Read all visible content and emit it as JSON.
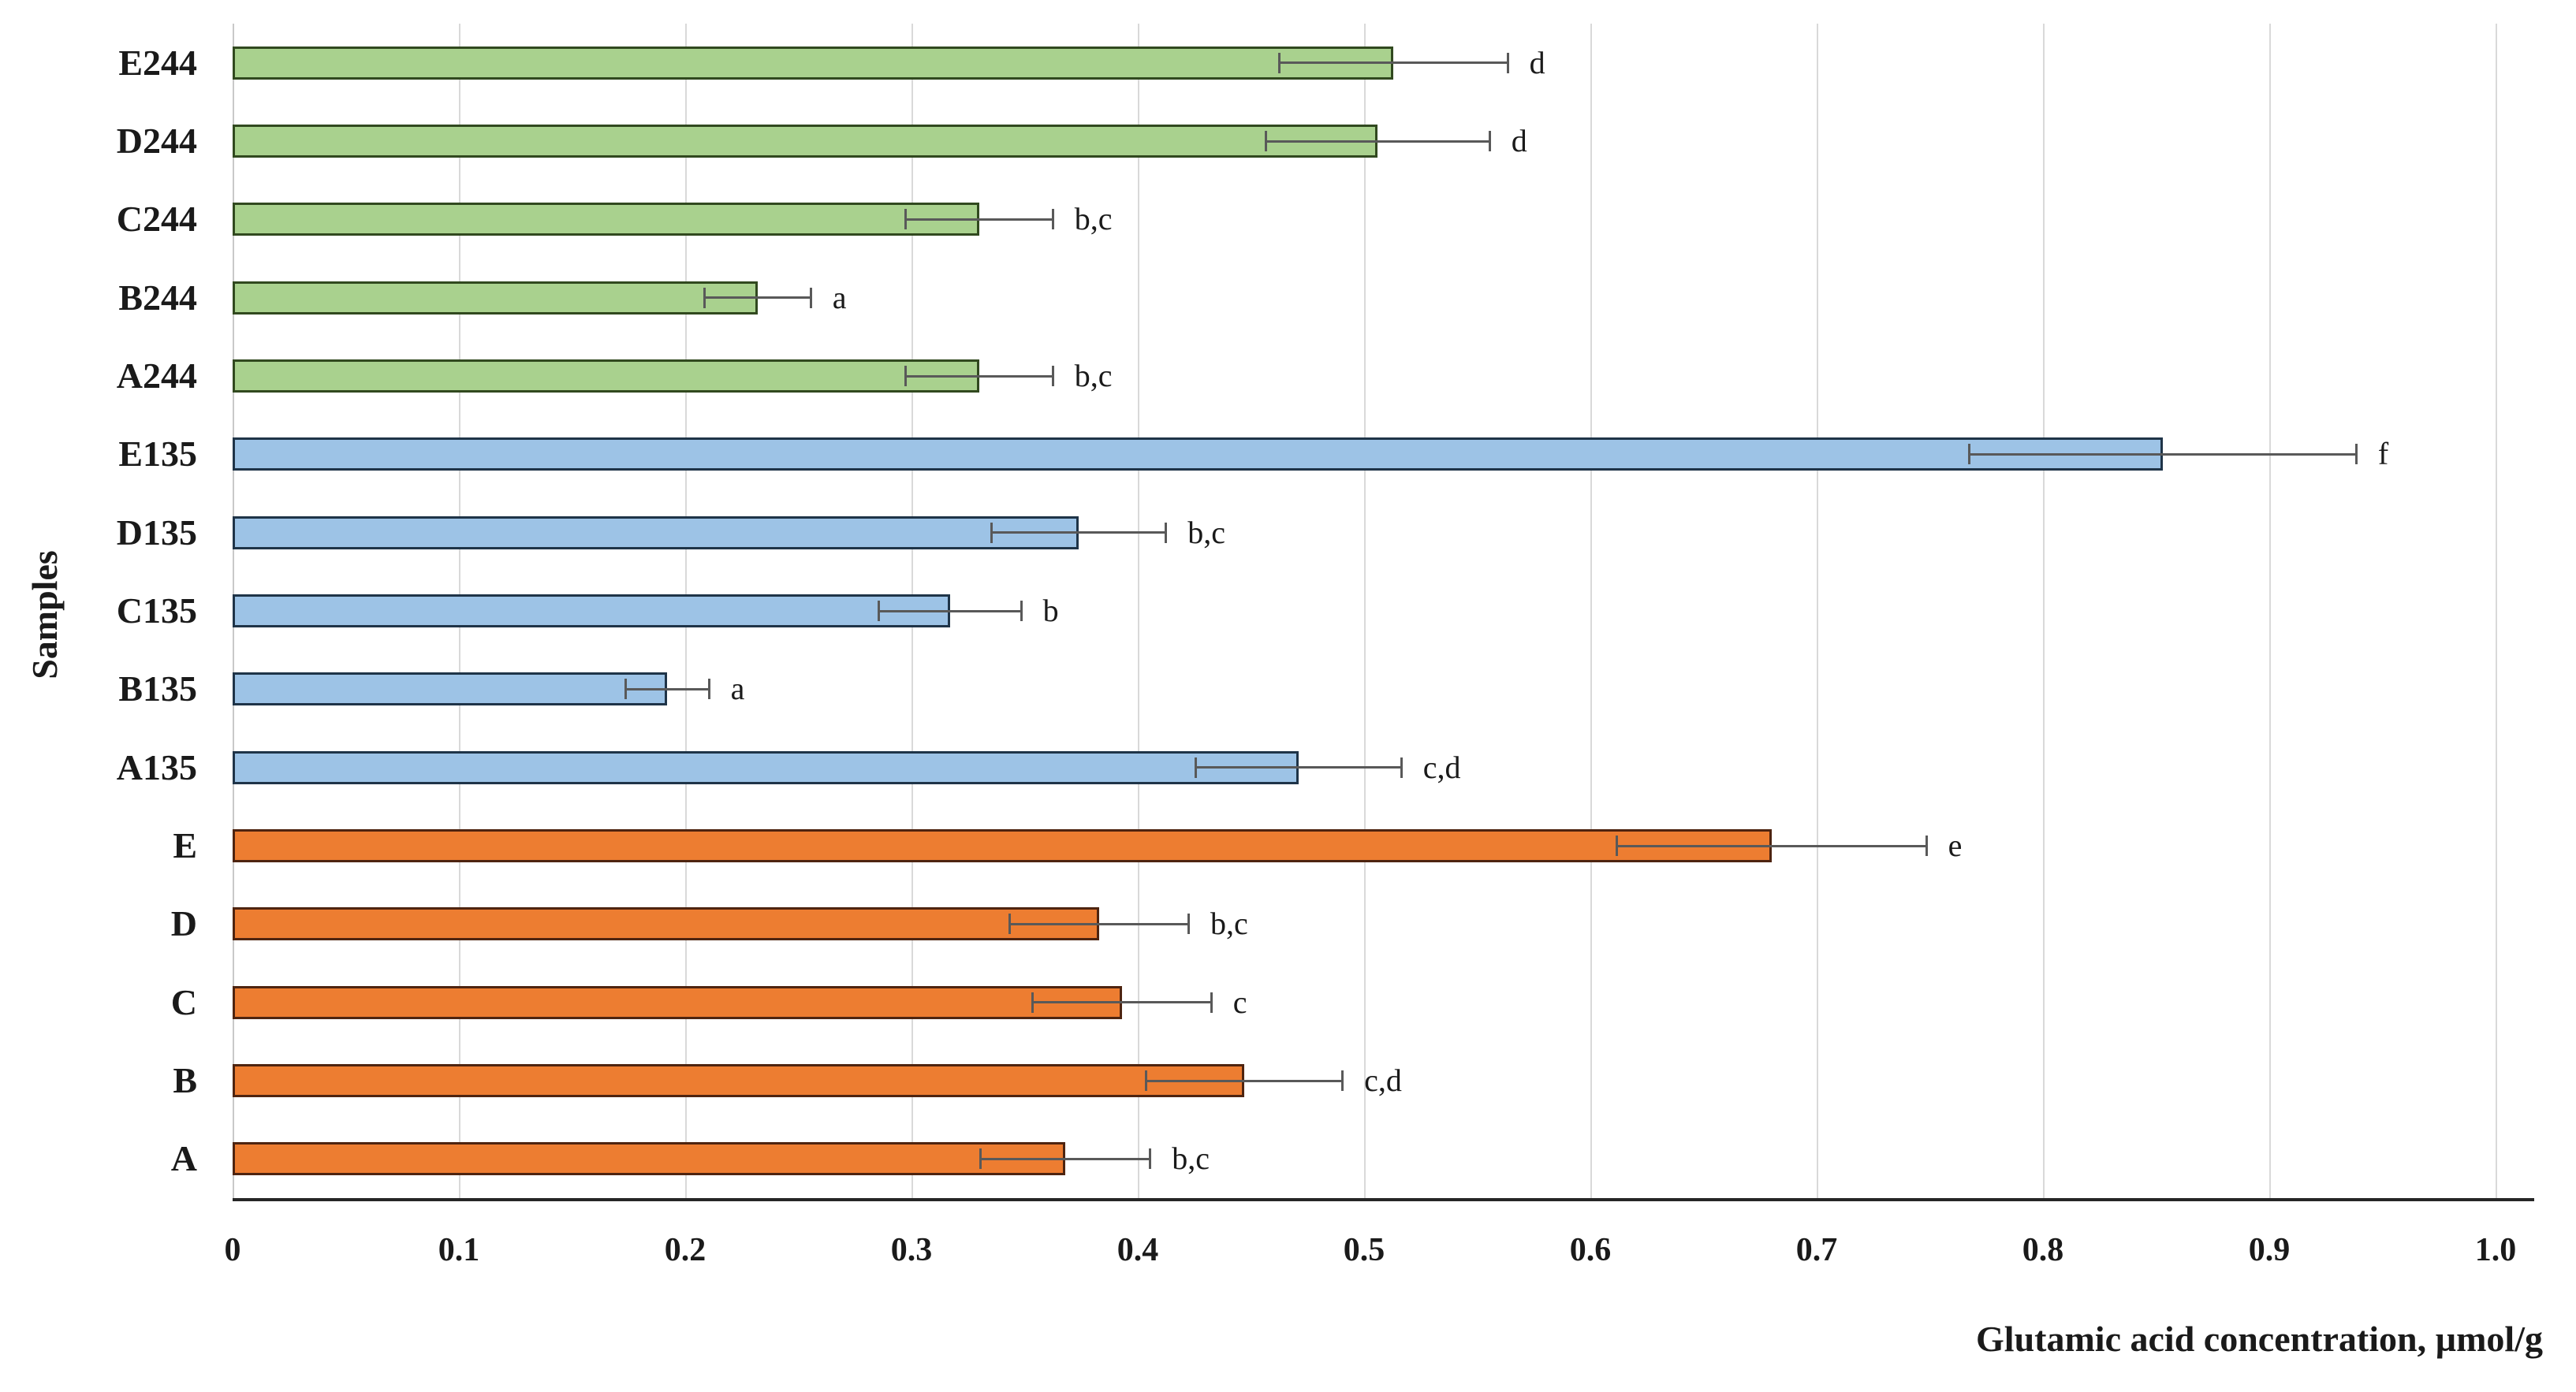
{
  "chart_data": {
    "type": "bar",
    "orientation": "horizontal",
    "title": "",
    "xlabel": "Glutamic acid concentration, µmol/g",
    "ylabel": "Samples",
    "xlim": [
      0,
      1.0
    ],
    "grid": true,
    "legend": "none",
    "xtick_values": [
      0,
      0.1,
      0.2,
      0.3,
      0.4,
      0.5,
      0.6,
      0.7,
      0.8,
      0.9,
      1.0
    ],
    "xtick_labels": [
      "0",
      "0.1",
      "0.2",
      "0.3",
      "0.4",
      "0.5",
      "0.6",
      "0.7",
      "0.8",
      "0.9",
      "1.0"
    ],
    "bars": [
      {
        "label": "E244",
        "value": 0.513,
        "error": 0.051,
        "letter": "d",
        "color": "green"
      },
      {
        "label": "D244",
        "value": 0.506,
        "error": 0.05,
        "letter": "d",
        "color": "green"
      },
      {
        "label": "C244",
        "value": 0.33,
        "error": 0.033,
        "letter": "b,c",
        "color": "green"
      },
      {
        "label": "B244",
        "value": 0.232,
        "error": 0.024,
        "letter": "a",
        "color": "green"
      },
      {
        "label": "A244",
        "value": 0.33,
        "error": 0.033,
        "letter": "b,c",
        "color": "green"
      },
      {
        "label": "E135",
        "value": 0.853,
        "error": 0.086,
        "letter": "f",
        "color": "blue"
      },
      {
        "label": "D135",
        "value": 0.374,
        "error": 0.039,
        "letter": "b,c",
        "color": "blue"
      },
      {
        "label": "C135",
        "value": 0.317,
        "error": 0.032,
        "letter": "b",
        "color": "blue"
      },
      {
        "label": "B135",
        "value": 0.192,
        "error": 0.019,
        "letter": "a",
        "color": "blue"
      },
      {
        "label": "A135",
        "value": 0.471,
        "error": 0.046,
        "letter": "c,d",
        "color": "blue"
      },
      {
        "label": "E",
        "value": 0.68,
        "error": 0.069,
        "letter": "e",
        "color": "orange"
      },
      {
        "label": "D",
        "value": 0.383,
        "error": 0.04,
        "letter": "b,c",
        "color": "orange"
      },
      {
        "label": "C",
        "value": 0.393,
        "error": 0.04,
        "letter": "c",
        "color": "orange"
      },
      {
        "label": "B",
        "value": 0.447,
        "error": 0.044,
        "letter": "c,d",
        "color": "orange"
      },
      {
        "label": "A",
        "value": 0.368,
        "error": 0.038,
        "letter": "b,c",
        "color": "orange"
      }
    ]
  },
  "palette": {
    "green": {
      "fill": "#a9d18e",
      "border": "#31491f"
    },
    "blue": {
      "fill": "#9dc3e6",
      "border": "#1f3448"
    },
    "orange": {
      "fill": "#ed7d31",
      "border": "#4e2410"
    }
  },
  "colors": {
    "error_bar": "#595959",
    "grid": "#d9d9d9",
    "zero_axis": "#c9c9c9",
    "axis": "#262626",
    "text": "#1a1a1a",
    "background": "#ffffff"
  }
}
